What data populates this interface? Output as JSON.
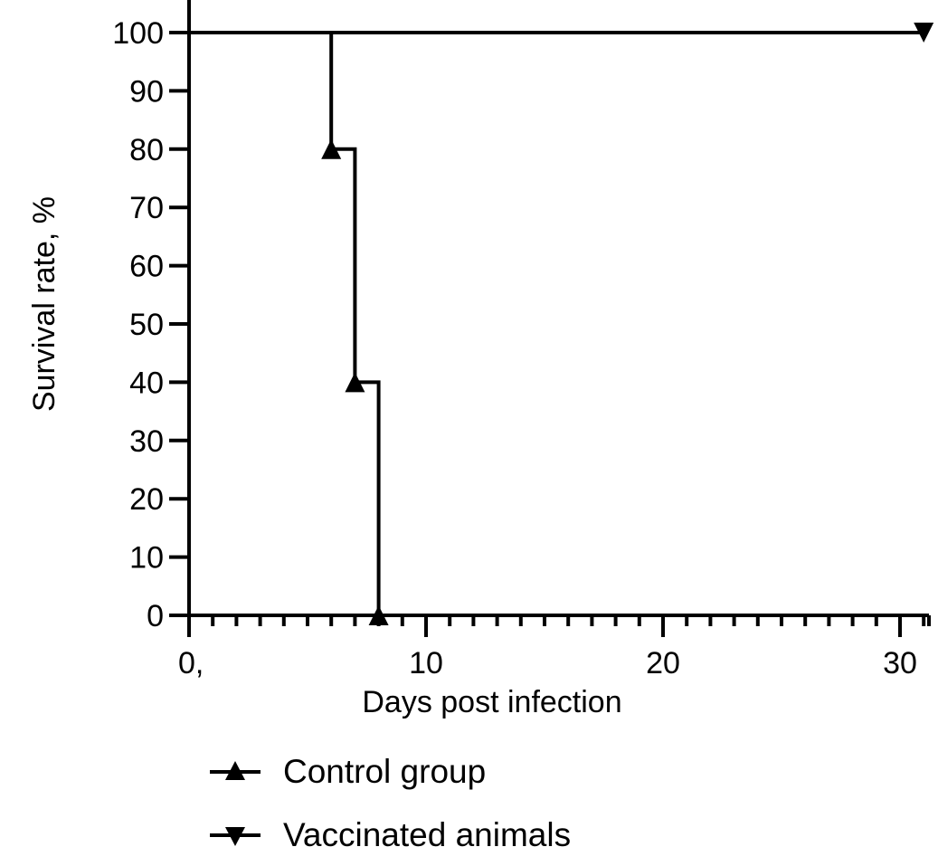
{
  "chart_data": {
    "type": "line",
    "step": true,
    "title": "",
    "xlabel": "Days post infection",
    "ylabel": "Survival rate, %",
    "xlim": [
      0,
      31
    ],
    "ylim": [
      0,
      100
    ],
    "x_ticks": [
      0,
      10,
      20,
      30
    ],
    "x_tick_labels": [
      "0,",
      "10",
      "20",
      "30"
    ],
    "x_minor_step": 1,
    "y_ticks": [
      0,
      10,
      20,
      30,
      40,
      50,
      60,
      70,
      80,
      90,
      100
    ],
    "y_tick_labels": [
      "0",
      "10",
      "20",
      "30",
      "40",
      "50",
      "60",
      "70",
      "80",
      "90",
      "100"
    ],
    "grid": false,
    "legend_position": "bottom",
    "series": [
      {
        "name": "Control group",
        "marker": "triangle-up",
        "color": "#000000",
        "x": [
          0,
          6,
          7,
          8
        ],
        "y": [
          100,
          80,
          40,
          0
        ],
        "marker_x": [
          6,
          7,
          8
        ]
      },
      {
        "name": "Vaccinated animals",
        "marker": "triangle-down",
        "color": "#000000",
        "x": [
          0,
          31
        ],
        "y": [
          100,
          100
        ],
        "marker_x": [
          31
        ]
      }
    ]
  }
}
